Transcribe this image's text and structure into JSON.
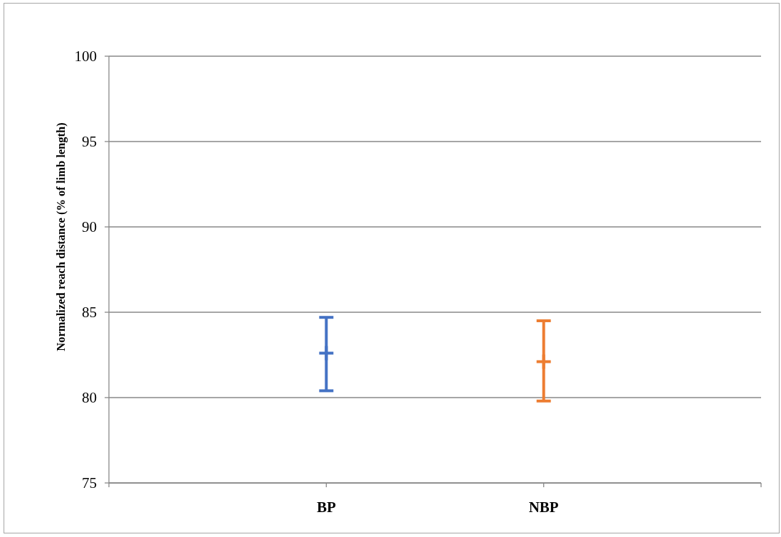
{
  "chart_data": {
    "type": "scatter",
    "ylabel": "Normalized reach distance (% of limb length)",
    "categories": [
      "BP",
      "NBP"
    ],
    "values": [
      82.6,
      82.1
    ],
    "errors": [
      [
        80.4,
        84.7
      ],
      [
        79.8,
        84.5
      ]
    ],
    "colors": [
      "#4472c4",
      "#ed7d31"
    ],
    "marker": "cross",
    "ylim": [
      75,
      100
    ],
    "yticks": [
      75,
      80,
      85,
      90,
      95,
      100
    ],
    "grid": "y"
  }
}
